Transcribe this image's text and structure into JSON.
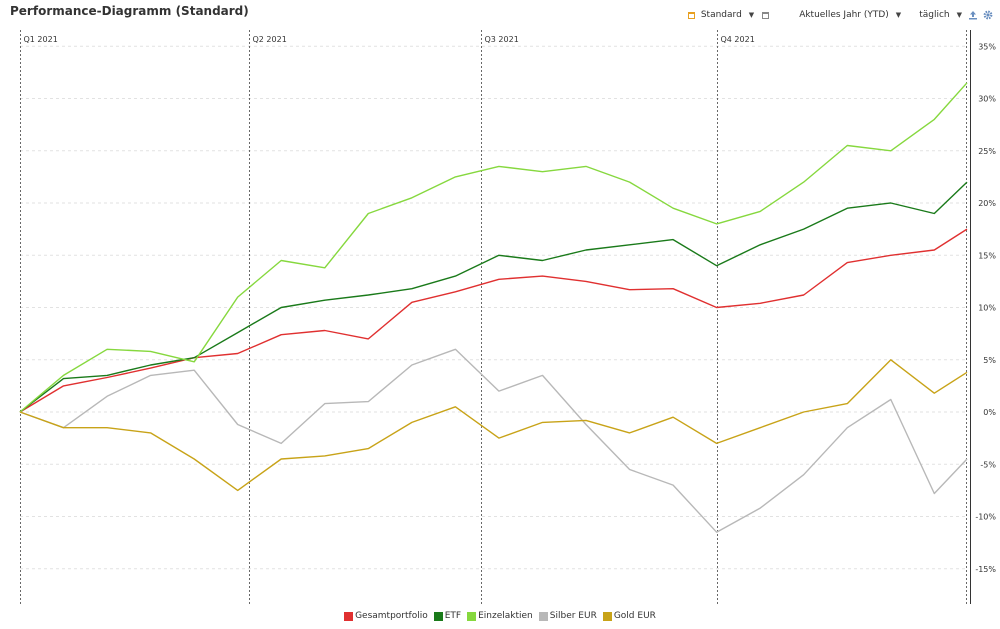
{
  "header": {
    "title": "Performance-Diagramm (Standard)",
    "view_label": "Standard",
    "period_label": "Aktuelles Jahr (YTD)",
    "interval_label": "täglich"
  },
  "colors": {
    "accent": "#e8a020"
  },
  "icons": {
    "view": "calendar-icon",
    "view_menu": "chevron-down-icon",
    "layout": "window-icon",
    "period_menu": "chevron-down-icon",
    "interval_menu": "chevron-down-icon",
    "export": "upload-icon",
    "settings": "gear-icon"
  },
  "chart_data": {
    "type": "line",
    "title": "",
    "xlabel": "",
    "ylabel": "",
    "x_unit": "trading day of 2021 (1 Jan 2021 – 31 Dec 2021)",
    "x": [
      0,
      12,
      24,
      36,
      48,
      60,
      72,
      84,
      96,
      108,
      120,
      132,
      144,
      156,
      168,
      180,
      192,
      204,
      216,
      228,
      240,
      252,
      261
    ],
    "xlim": [
      0,
      261
    ],
    "quarters": [
      {
        "label": "Q1 2021",
        "x": 0
      },
      {
        "label": "Q2 2021",
        "x": 63
      },
      {
        "label": "Q3 2021",
        "x": 127
      },
      {
        "label": "Q4 2021",
        "x": 192
      }
    ],
    "ylim": [
      -18,
      36
    ],
    "yticks": [
      -15,
      -10,
      -5,
      0,
      5,
      10,
      15,
      20,
      25,
      30,
      35
    ],
    "ytick_labels": [
      "-15%",
      "-10%",
      "-5%",
      "0%",
      "5%",
      "10%",
      "15%",
      "20%",
      "25%",
      "30%",
      "35%"
    ],
    "grid": true,
    "legend_position": "bottom-center",
    "series": [
      {
        "name": "Gesamtportfolio",
        "color": "#e03030",
        "values": [
          0.0,
          2.5,
          3.3,
          4.2,
          5.2,
          5.6,
          7.4,
          7.8,
          7.0,
          10.5,
          11.5,
          12.7,
          13.0,
          12.5,
          11.7,
          11.8,
          10.0,
          10.4,
          11.2,
          14.3,
          15.0,
          15.5,
          17.5
        ]
      },
      {
        "name": "ETF",
        "color": "#1a7a1a",
        "values": [
          0.0,
          3.2,
          3.5,
          4.5,
          5.2,
          7.6,
          10.0,
          10.7,
          11.2,
          11.8,
          13.0,
          15.0,
          14.5,
          15.5,
          16.0,
          16.5,
          14.0,
          16.0,
          17.5,
          19.5,
          20.0,
          19.0,
          22.0
        ]
      },
      {
        "name": "Einzelaktien",
        "color": "#86d83e",
        "values": [
          0.0,
          3.5,
          6.0,
          5.8,
          4.8,
          11.0,
          14.5,
          13.8,
          19.0,
          20.5,
          22.5,
          23.5,
          23.0,
          23.5,
          22.0,
          19.5,
          18.0,
          19.2,
          22.0,
          25.5,
          25.0,
          28.0,
          31.5
        ]
      },
      {
        "name": "Silber EUR",
        "color": "#b8b8b8",
        "values": [
          0.0,
          -1.5,
          1.5,
          3.5,
          4.0,
          -1.2,
          -3.0,
          0.8,
          1.0,
          4.5,
          6.0,
          2.0,
          3.5,
          -1.2,
          -5.5,
          -7.0,
          -11.5,
          -9.2,
          -6.0,
          -1.5,
          1.2,
          -7.8,
          -4.5
        ]
      },
      {
        "name": "Gold EUR",
        "color": "#c8a318",
        "values": [
          0.0,
          -1.5,
          -1.5,
          -2.0,
          -4.5,
          -7.5,
          -4.5,
          -4.2,
          -3.5,
          -1.0,
          0.5,
          -2.5,
          -1.0,
          -0.8,
          -2.0,
          -0.5,
          -3.0,
          -1.5,
          0.0,
          0.8,
          5.0,
          1.8,
          3.8
        ]
      }
    ]
  }
}
